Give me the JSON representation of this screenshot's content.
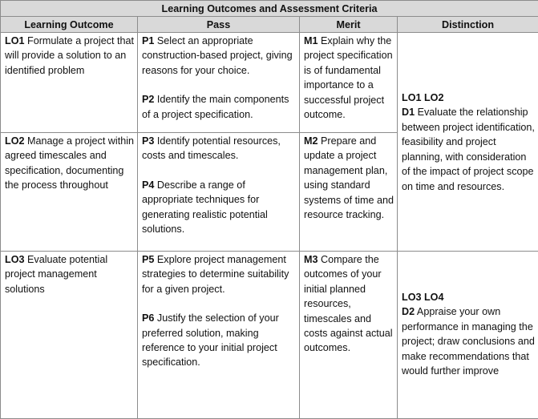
{
  "title": "Learning Outcomes and Assessment Criteria",
  "headers": [
    "Learning Outcome",
    "Pass",
    "Merit",
    "Distinction"
  ],
  "lo1": {
    "code": "LO1",
    "text": " Formulate a project that will provide a solution to an identified problem"
  },
  "lo2": {
    "code": "LO2",
    "text": " Manage a project within agreed timescales and specification, documenting the process throughout"
  },
  "lo3": {
    "code": "LO3",
    "text": " Evaluate potential project management solutions"
  },
  "p1": {
    "code": "P1",
    "text": " Select an appropriate construction-based project, giving reasons for your choice."
  },
  "p2": {
    "code": "P2",
    "text": " Identify the main components of a project specification."
  },
  "p3": {
    "code": "P3",
    "text": " Identify potential resources, costs and timescales."
  },
  "p4": {
    "code": "P4",
    "text": " Describe a range of appropriate techniques for generating realistic potential solutions."
  },
  "p5": {
    "code": "P5",
    "text": " Explore project management strategies to determine suitability for a given project."
  },
  "p6": {
    "code": "P6",
    "text": " Justify the selection of your preferred solution, making reference to your initial project specification."
  },
  "m1": {
    "code": "M1",
    "text": " Explain why the project specification is of fundamental importance to a successful project outcome."
  },
  "m2": {
    "code": "M2",
    "text": " Prepare and update a project management plan, using standard systems of time and resource tracking."
  },
  "m3": {
    "code": "M3",
    "text": " Compare the outcomes of your initial planned resources, timescales and costs against actual outcomes."
  },
  "d1": {
    "los": "LO1 LO2",
    "code": "D1",
    "text": " Evaluate the relationship between project identification, feasibility and project planning, with consideration of the impact of project scope on time and resources."
  },
  "d2": {
    "los": "LO3 LO4",
    "code": "D2",
    "text": " Appraise your own performance in managing the project; draw conclusions and make recommendations that would further improve"
  }
}
